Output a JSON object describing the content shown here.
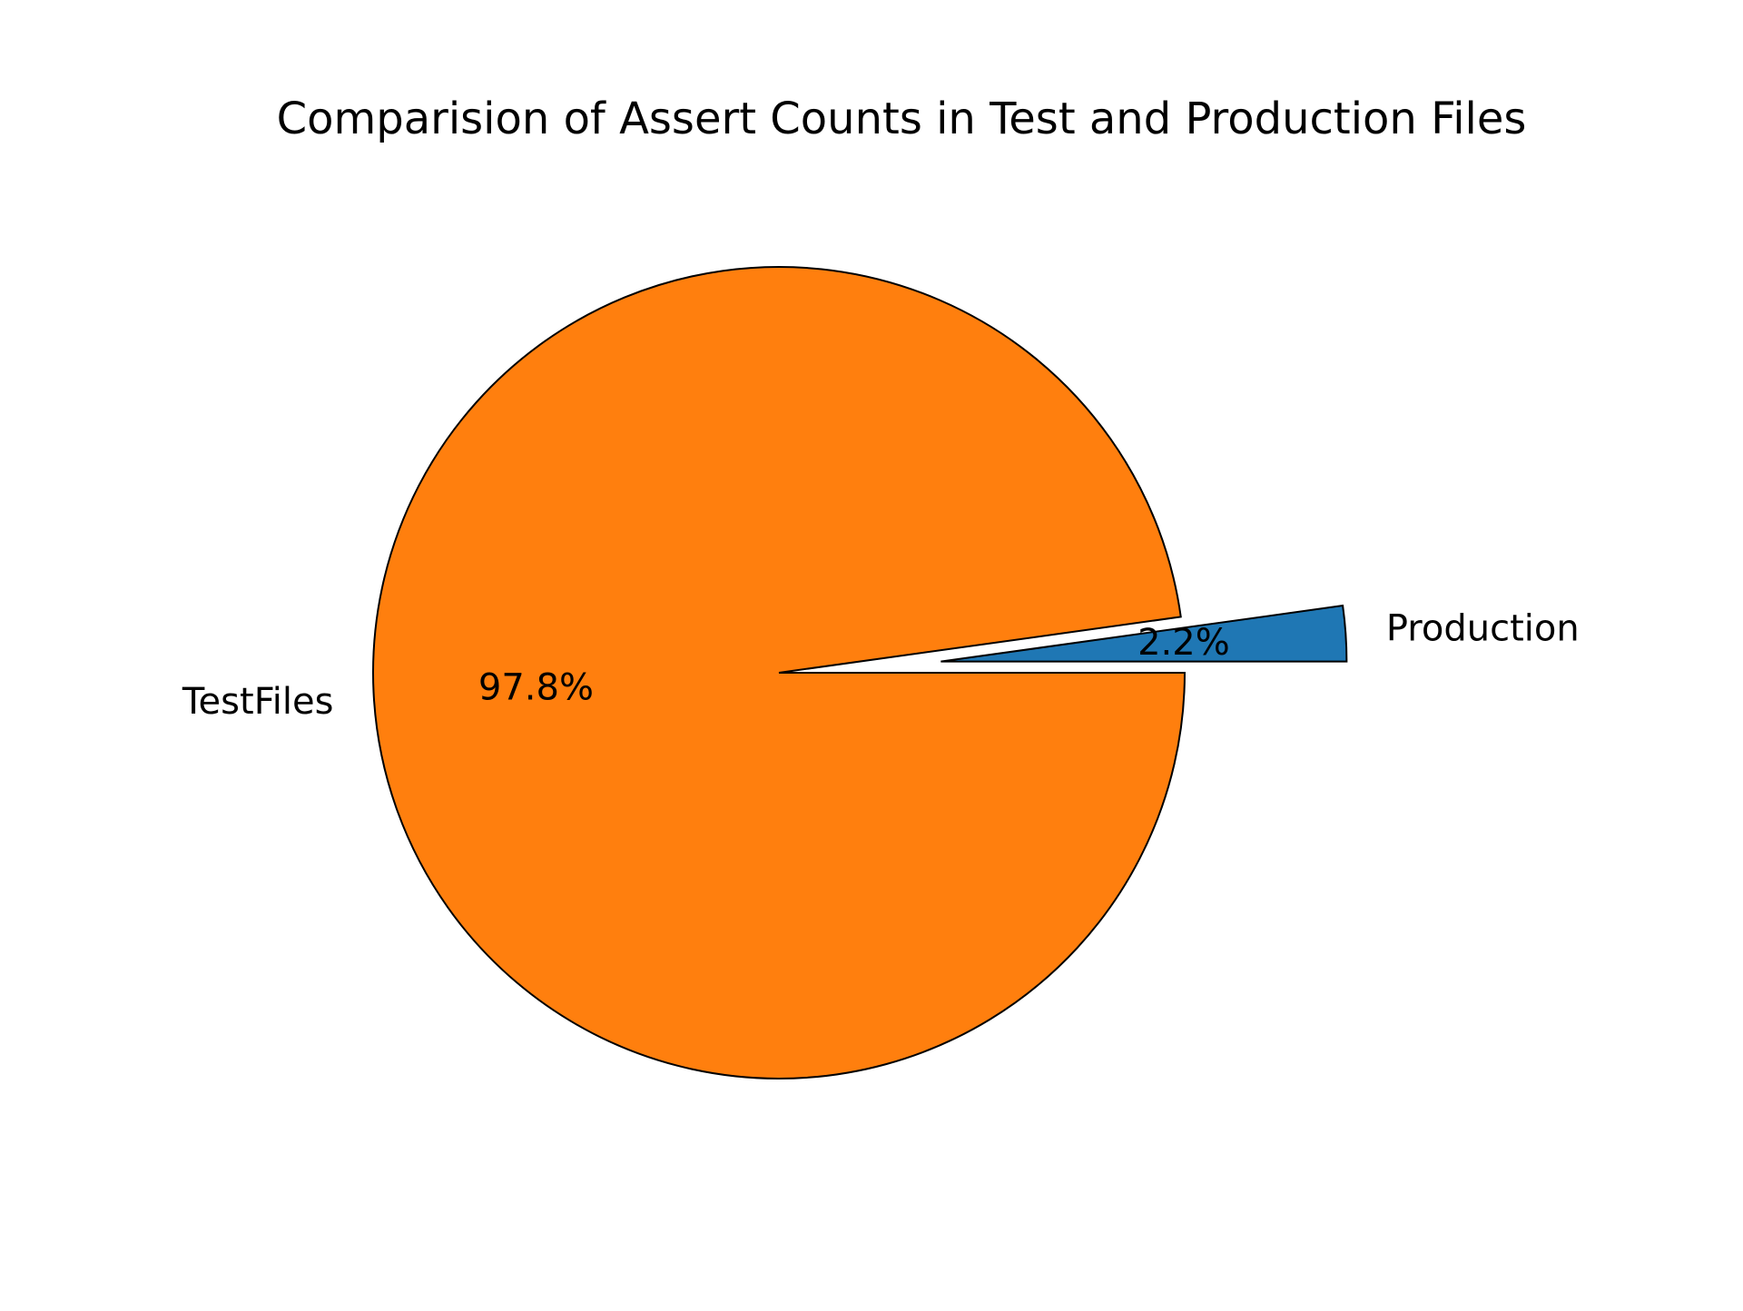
{
  "chart_data": {
    "type": "pie",
    "title": "Comparision of Assert Counts in Test and Production Files",
    "slices": [
      {
        "label": "Production",
        "value": 2.2,
        "pct_label": "2.2%",
        "color": "#1f77b4",
        "exploded": true
      },
      {
        "label": "TestFiles",
        "value": 97.8,
        "pct_label": "97.8%",
        "color": "#ff7f0e",
        "exploded": false
      }
    ],
    "start_angle_deg": 0,
    "direction": "counterclockwise",
    "edge_color": "#000000",
    "legend": "none"
  }
}
